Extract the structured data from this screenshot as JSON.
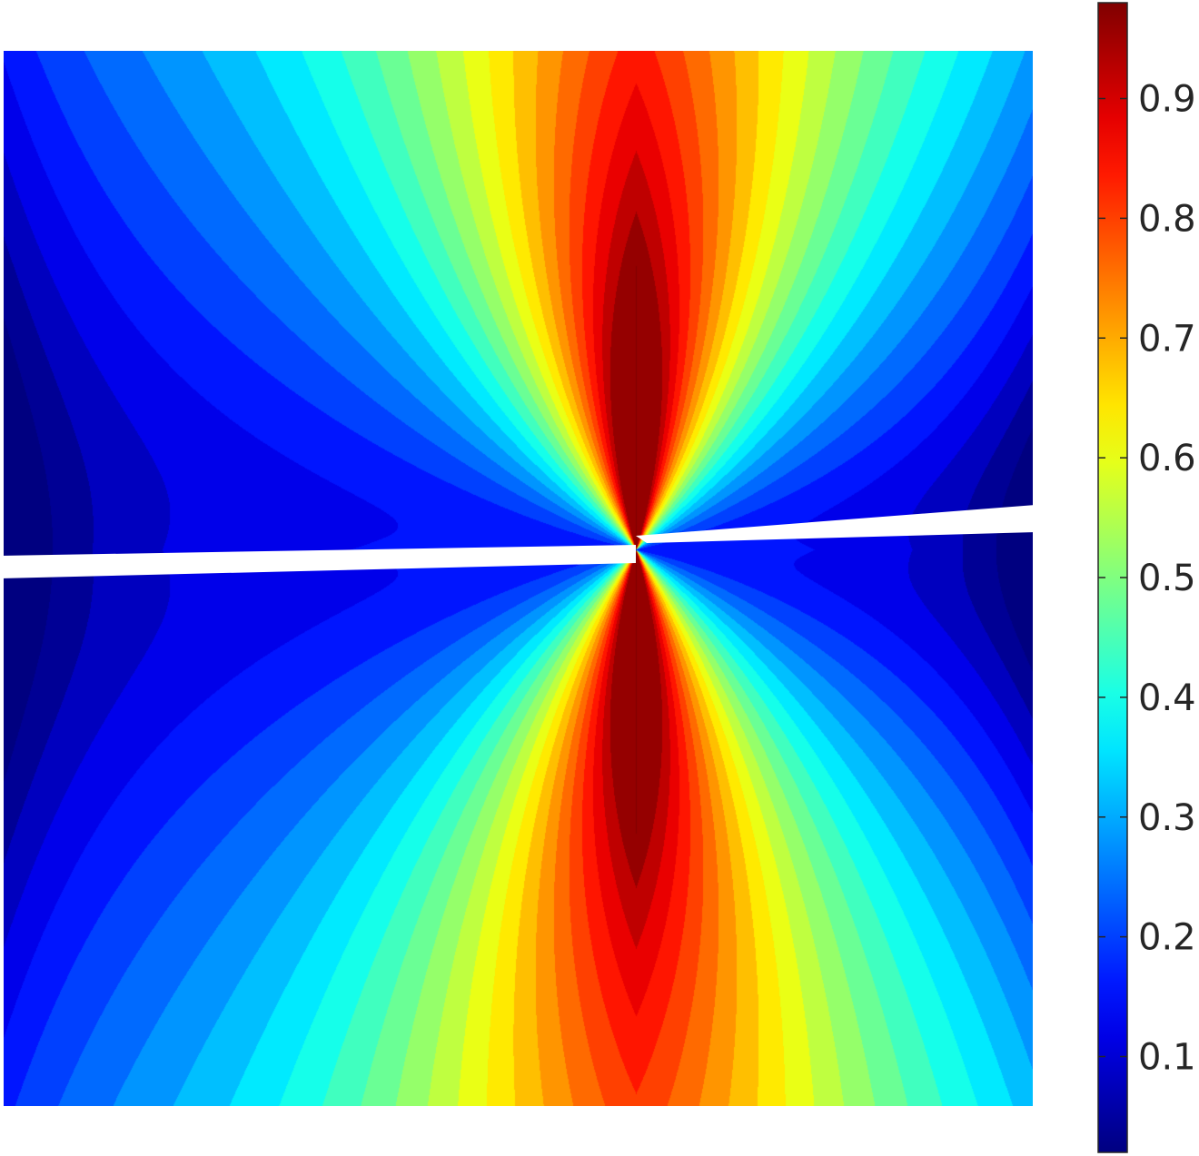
{
  "chart_data": {
    "type": "heatmap",
    "title": "",
    "xlabel": "",
    "ylabel": "",
    "colormap": "jet",
    "color_range": [
      0.02,
      0.98
    ],
    "colorbar": {
      "location": "right",
      "ticks": [
        0.1,
        0.2,
        0.3,
        0.4,
        0.5,
        0.6,
        0.7,
        0.8,
        0.9
      ],
      "tick_labels": [
        "0.1",
        "0.2",
        "0.3",
        "0.4",
        "0.5",
        "0.6",
        "0.7",
        "0.8",
        "0.9"
      ]
    },
    "field": {
      "description_levels": "high values (~0.98) in two lobes above and below the crack tip at domain center; low values (~0.05) along diagonal bands from the crack tip to the left and right edges; crack is a thin horizontal gap from the left edge to the center and a second gap from the center to the right edge",
      "max_value": 0.98,
      "min_value": 0.03
    },
    "grid": false,
    "axes_visible": false
  },
  "colors": {
    "background": "#ffffff",
    "text": "#262626"
  }
}
